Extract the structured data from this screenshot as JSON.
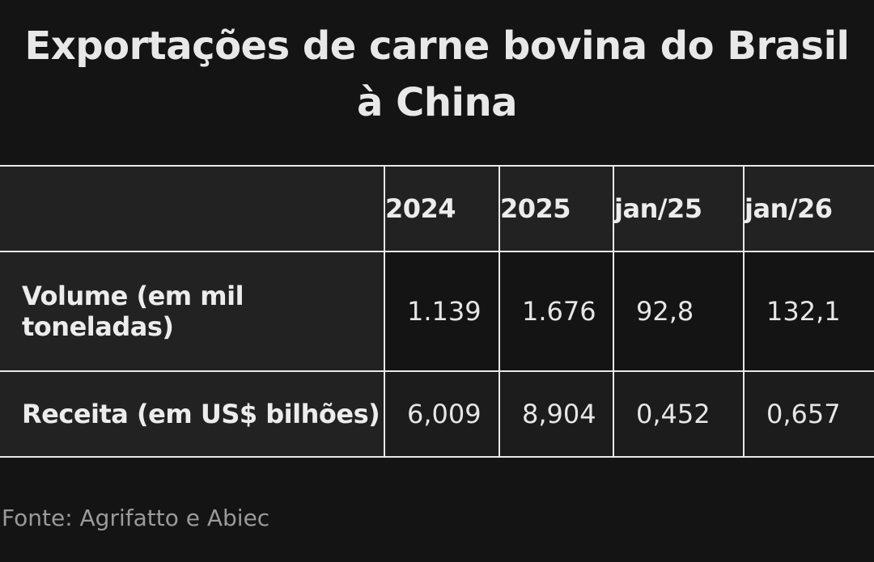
{
  "title": {
    "line1": "Exportações de carne bovina do Brasil",
    "line2": "à China"
  },
  "table": {
    "headers": [
      "",
      "2024",
      "2025",
      "jan/25",
      "jan/26"
    ],
    "rows": [
      {
        "label_line1": "Volume (em mil",
        "label_line2": "toneladas)",
        "values": [
          "1.139",
          "1.676",
          "92,8",
          "132,1"
        ]
      },
      {
        "label_line1": "Receita (em US$ bilhões)",
        "label_line2": "",
        "values": [
          "6,009",
          "8,904",
          "0,452",
          "0,657"
        ]
      }
    ]
  },
  "source": "Fonte: Agrifatto e Abiec"
}
